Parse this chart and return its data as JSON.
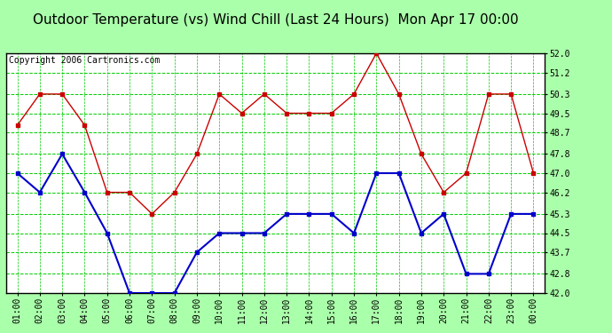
{
  "title": "Outdoor Temperature (vs) Wind Chill (Last 24 Hours)  Mon Apr 17 00:00",
  "copyright": "Copyright 2006 Cartronics.com",
  "x_labels": [
    "01:00",
    "02:00",
    "03:00",
    "04:00",
    "05:00",
    "06:00",
    "07:00",
    "08:00",
    "09:00",
    "10:00",
    "11:00",
    "12:00",
    "13:00",
    "14:00",
    "15:00",
    "16:00",
    "17:00",
    "18:00",
    "19:00",
    "20:00",
    "21:00",
    "22:00",
    "23:00",
    "00:00"
  ],
  "red_data": [
    49.0,
    50.3,
    50.3,
    49.0,
    46.2,
    46.2,
    45.3,
    46.2,
    47.8,
    50.3,
    49.5,
    50.3,
    49.5,
    49.5,
    49.5,
    50.3,
    52.0,
    50.3,
    47.8,
    46.2,
    47.0,
    50.3,
    50.3,
    47.0
  ],
  "blue_data": [
    47.0,
    46.2,
    47.8,
    46.2,
    44.5,
    42.0,
    42.0,
    42.0,
    43.7,
    44.5,
    44.5,
    44.5,
    45.3,
    45.3,
    45.3,
    44.5,
    47.0,
    47.0,
    44.5,
    45.3,
    42.8,
    42.8,
    45.3,
    45.3
  ],
  "red_color": "#cc0000",
  "blue_color": "#0000cc",
  "outer_bg": "#aaffaa",
  "plot_bg": "#ffffff",
  "grid_major_color": "#00cc00",
  "grid_minor_color": "#00cc00",
  "border_color": "#000000",
  "title_color": "#000000",
  "ylim": [
    42.0,
    52.0
  ],
  "yticks": [
    42.0,
    42.8,
    43.7,
    44.5,
    45.3,
    46.2,
    47.0,
    47.8,
    48.7,
    49.5,
    50.3,
    51.2,
    52.0
  ],
  "title_fontsize": 11,
  "tick_fontsize": 7,
  "copyright_fontsize": 7
}
